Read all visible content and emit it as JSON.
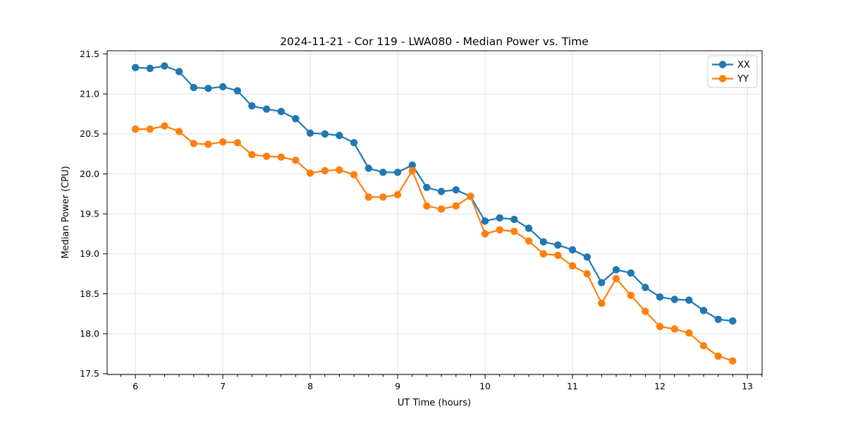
{
  "chart_data": {
    "type": "line",
    "title": "2024-11-21 - Cor 119 - LWA080 - Median Power vs. Time",
    "xlabel": "UT Time (hours)",
    "ylabel": "Median Power (CPU)",
    "xlim": [
      5.677,
      13.169
    ],
    "ylim": [
      17.49,
      21.54
    ],
    "grid": true,
    "legend_position": "upper right",
    "xtick_values": [
      6,
      7,
      8,
      9,
      10,
      11,
      12,
      13
    ],
    "xtick_labels": [
      "6",
      "7",
      "8",
      "9",
      "10",
      "11",
      "12",
      "13"
    ],
    "ytick_values": [
      17.5,
      18.0,
      18.5,
      19.0,
      19.5,
      20.0,
      20.5,
      21.0,
      21.5
    ],
    "ytick_labels": [
      "17.5",
      "18.0",
      "18.5",
      "19.0",
      "19.5",
      "20.0",
      "20.5",
      "21.0",
      "21.5"
    ],
    "x_minor_step": 0.166667,
    "x": [
      6.0,
      6.167,
      6.333,
      6.5,
      6.667,
      6.833,
      7.0,
      7.167,
      7.333,
      7.5,
      7.667,
      7.833,
      8.0,
      8.167,
      8.333,
      8.5,
      8.667,
      8.833,
      9.0,
      9.167,
      9.333,
      9.5,
      9.667,
      9.833,
      10.0,
      10.167,
      10.333,
      10.5,
      10.667,
      10.833,
      11.0,
      11.167,
      11.333,
      11.5,
      11.667,
      11.833,
      12.0,
      12.167,
      12.333,
      12.5,
      12.667,
      12.833
    ],
    "series": [
      {
        "name": "XX",
        "color": "#1f77b4",
        "values": [
          21.33,
          21.32,
          21.35,
          21.28,
          21.08,
          21.07,
          21.09,
          21.04,
          20.85,
          20.81,
          20.78,
          20.69,
          20.51,
          20.5,
          20.48,
          20.39,
          20.07,
          20.02,
          20.02,
          20.11,
          19.83,
          19.78,
          19.8,
          19.72,
          19.41,
          19.45,
          19.43,
          19.32,
          19.15,
          19.11,
          19.05,
          18.96,
          18.64,
          18.8,
          18.76,
          18.58,
          18.46,
          18.43,
          18.42,
          18.29,
          18.18,
          18.16
        ]
      },
      {
        "name": "YY",
        "color": "#ff7f0e",
        "values": [
          20.56,
          20.56,
          20.6,
          20.53,
          20.38,
          20.37,
          20.4,
          20.39,
          20.24,
          20.22,
          20.21,
          20.17,
          20.01,
          20.04,
          20.05,
          19.99,
          19.71,
          19.71,
          19.74,
          20.04,
          19.6,
          19.56,
          19.6,
          19.72,
          19.25,
          19.3,
          19.28,
          19.16,
          19.0,
          18.98,
          18.85,
          18.75,
          18.38,
          18.69,
          18.48,
          18.28,
          18.09,
          18.06,
          18.01,
          17.85,
          17.72,
          17.66
        ]
      }
    ],
    "colors": {
      "background": "#ffffff",
      "grid": "#e0e0e0",
      "spine": "#000000",
      "text": "#000000",
      "legend_border": "#cccccc"
    }
  }
}
